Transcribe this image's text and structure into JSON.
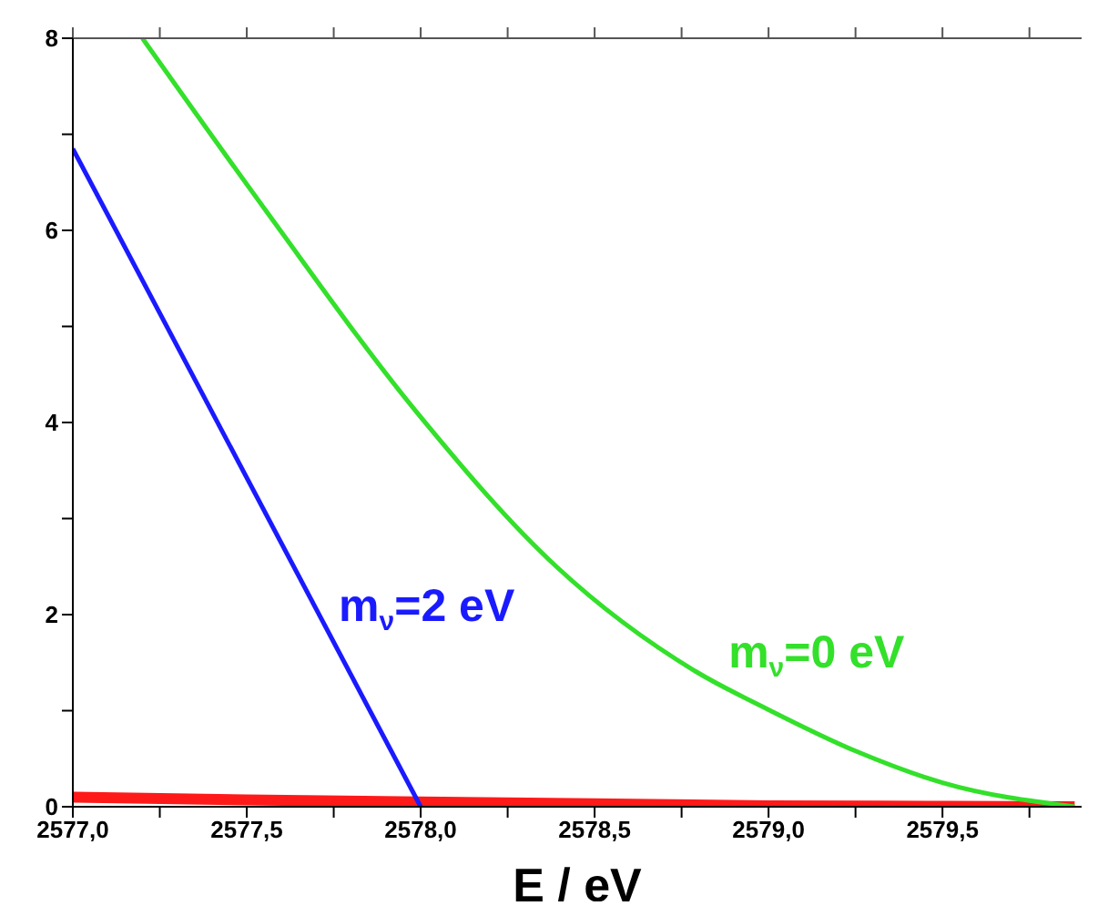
{
  "chart_data": {
    "type": "line",
    "xlabel": "E / eV",
    "xlim": [
      2577,
      2579.9
    ],
    "xticks": [
      {
        "value": 2577,
        "label": "2577,0"
      },
      {
        "value": 2577.25,
        "label": null
      },
      {
        "value": 2577.5,
        "label": "2577,5"
      },
      {
        "value": 2577.75,
        "label": null
      },
      {
        "value": 2578,
        "label": "2578,0"
      },
      {
        "value": 2578.25,
        "label": null
      },
      {
        "value": 2578.5,
        "label": "2578,5"
      },
      {
        "value": 2578.75,
        "label": null
      },
      {
        "value": 2579,
        "label": "2579,0"
      },
      {
        "value": 2579.25,
        "label": null
      },
      {
        "value": 2579.5,
        "label": "2579,5"
      },
      {
        "value": 2579.75,
        "label": null
      }
    ],
    "ylim": [
      0,
      8
    ],
    "yticks": [
      0,
      {
        "value": 1,
        "label": null
      },
      2,
      {
        "value": 3,
        "label": null
      },
      4,
      {
        "value": 5,
        "label": null
      },
      6,
      {
        "value": 7,
        "label": null
      },
      8
    ],
    "marker": "none",
    "line_style": "solid",
    "series": [
      {
        "color": "#ff1a1a",
        "x": [
          2577,
          2577.5,
          2578,
          2578.5,
          2579,
          2579.5,
          2579.88
        ],
        "values": [
          0.1,
          0.07,
          0.05,
          0.03,
          0.01,
          0.005,
          0
        ]
      },
      {
        "name": "m$_{ν}$=2 eV",
        "color": "#1a1aff",
        "x": [
          2577,
          2578
        ],
        "values": [
          6.85,
          0
        ]
      },
      {
        "name": "m$_{ν}$=0 eV",
        "color": "#33e02a",
        "x": [
          2577.2,
          2577.56,
          2577.99,
          2578.39,
          2578.79,
          2579,
          2579.25,
          2579.5,
          2579.88
        ],
        "values": [
          8,
          6.18,
          4.1,
          2.5,
          1.41,
          1.01,
          0.58,
          0.25,
          0
        ]
      }
    ]
  }
}
